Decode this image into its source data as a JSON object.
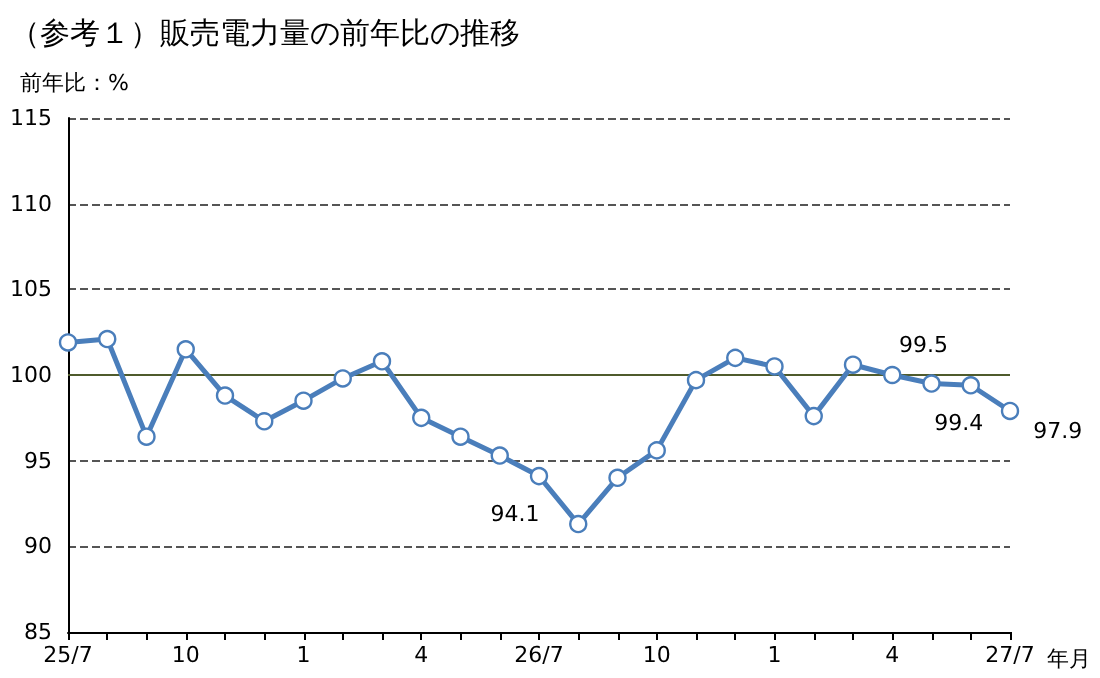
{
  "chart_data": {
    "type": "line",
    "title": "（参考１）販売電力量の前年比の推移",
    "xlabel": "年月",
    "ylabel": "前年比：%",
    "categories": [
      "25/7",
      null,
      null,
      "10",
      null,
      null,
      "1",
      null,
      null,
      "4",
      null,
      null,
      "26/7",
      null,
      null,
      "10",
      null,
      null,
      "1",
      null,
      null,
      "4",
      null,
      null,
      "27/7"
    ],
    "series": [
      {
        "color": "#4a7ebb",
        "values": [
          101.9,
          102.1,
          96.4,
          101.5,
          98.8,
          97.3,
          98.5,
          99.8,
          100.8,
          97.5,
          96.4,
          95.3,
          94.1,
          91.3,
          94.0,
          95.6,
          99.7,
          101.0,
          100.5,
          97.6,
          100.6,
          100.0,
          99.5,
          99.4,
          97.9
        ],
        "value_labels": [
          null,
          null,
          null,
          null,
          null,
          null,
          null,
          null,
          null,
          null,
          null,
          null,
          "94.1",
          null,
          null,
          null,
          null,
          null,
          null,
          null,
          null,
          null,
          "99.5",
          "99.4",
          "97.9"
        ]
      }
    ],
    "ylim": [
      85,
      115
    ],
    "yticks": [
      85,
      90,
      95,
      100,
      105,
      110,
      115
    ],
    "grid": "y",
    "line_style": "solid",
    "marker": "circle",
    "ref_lines": [
      {
        "axis": "y",
        "value": 100,
        "color": "#4f5b2c",
        "line_style": "solid"
      }
    ]
  }
}
